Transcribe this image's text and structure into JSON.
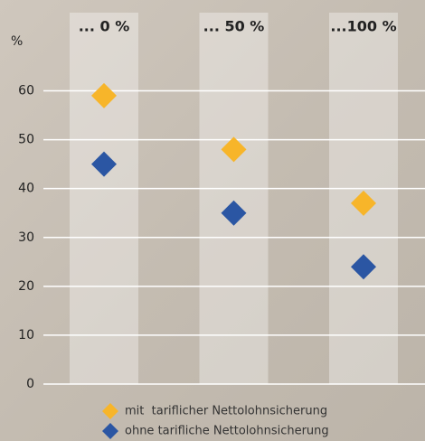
{
  "chart_data": {
    "type": "scatter",
    "y_label": "%",
    "categories": [
      "... 0 %",
      "... 50 %",
      "...100 %"
    ],
    "series": [
      {
        "name": "mit  tariflicher Nettolohnsicherung",
        "color": "#f7b52a",
        "values": [
          59,
          48,
          37
        ]
      },
      {
        "name": "ohne tarifliche Nettolohnsicherung",
        "color": "#2b56a3",
        "values": [
          45,
          35,
          24
        ]
      }
    ],
    "ylim": [
      0,
      76
    ],
    "yticks": [
      0,
      10,
      20,
      30,
      40,
      50,
      60
    ],
    "grid": true,
    "legend": "bottom"
  }
}
